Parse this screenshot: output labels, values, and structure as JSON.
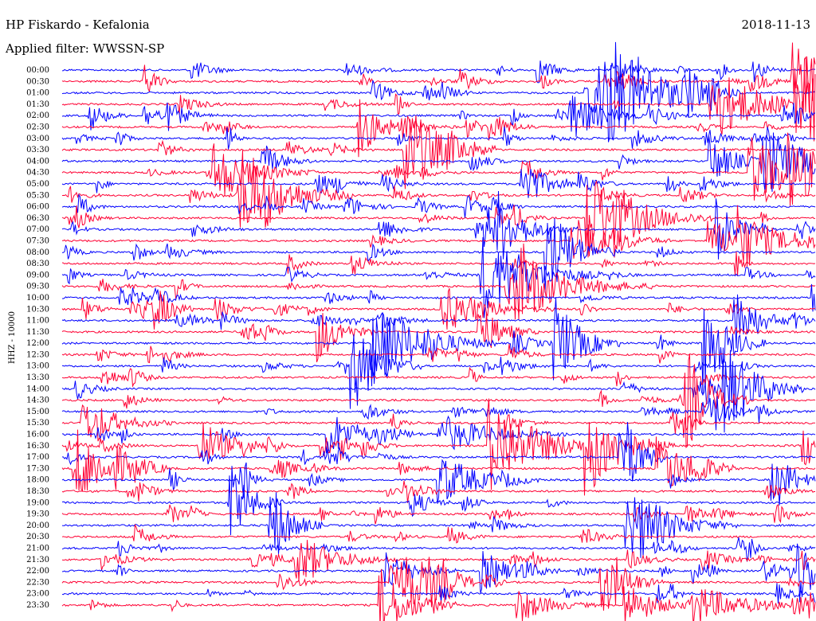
{
  "chart_data": {
    "type": "helicorder",
    "title": "HP Fiskardo - Kefalonia",
    "subtitle": "Applied filter: WWSSN-SP",
    "date": "2018-11-13",
    "y_label": "HHZ - 10000",
    "colors": [
      "#0000ff",
      "#ff0033"
    ],
    "categories": [
      "00:00",
      "00:30",
      "01:00",
      "01:30",
      "02:00",
      "02:30",
      "03:00",
      "03:30",
      "04:00",
      "04:30",
      "05:00",
      "05:30",
      "06:00",
      "06:30",
      "07:00",
      "07:30",
      "08:00",
      "08:30",
      "09:00",
      "09:30",
      "10:00",
      "10:30",
      "11:00",
      "11:30",
      "12:00",
      "12:30",
      "13:00",
      "13:30",
      "14:00",
      "14:30",
      "15:00",
      "15:30",
      "16:00",
      "16:30",
      "17:00",
      "17:30",
      "18:00",
      "18:30",
      "19:00",
      "19:30",
      "20:00",
      "20:30",
      "21:00",
      "21:30",
      "22:00",
      "22:30",
      "23:00",
      "23:30"
    ]
  }
}
